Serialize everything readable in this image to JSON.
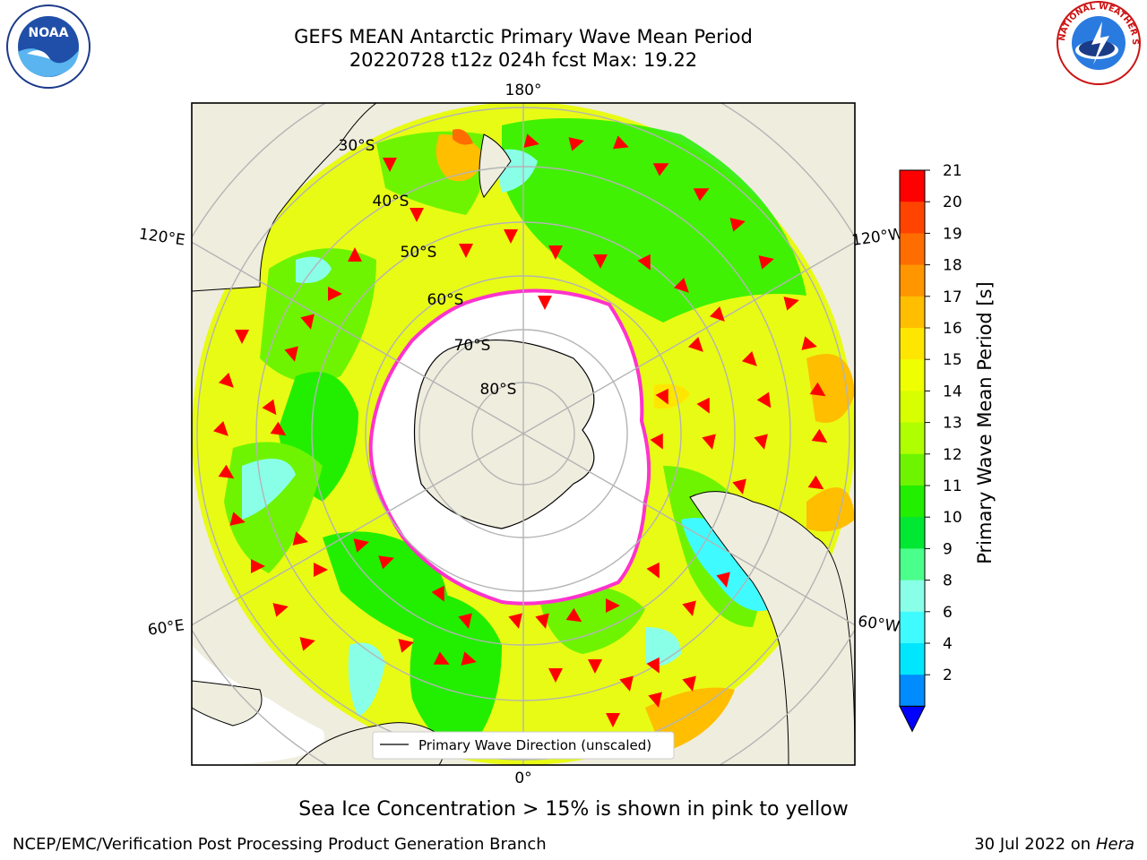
{
  "header": {
    "title_line1": "GEFS MEAN Antarctic Primary Wave Mean Period",
    "title_line2": "20220728 t12z 024h fcst   Max: 19.22"
  },
  "map": {
    "lon_labels": {
      "top": "180°",
      "bottom": "0°",
      "upper_left": "120°E",
      "upper_right": "120°W",
      "lower_left": "60°E",
      "lower_right": "60°W"
    },
    "lat_labels": [
      "30°S",
      "40°S",
      "50°S",
      "60°S",
      "70°S",
      "80°S"
    ],
    "legend_text": "Primary Wave Direction (unscaled)",
    "ice_note": "Sea Ice Concentration > 15% is shown in pink to yellow"
  },
  "colorbar": {
    "label": "Primary Wave Mean Period [s]",
    "ticks": [
      "21",
      "20",
      "19",
      "18",
      "17",
      "16",
      "15",
      "14",
      "13",
      "12",
      "11",
      "10",
      "9",
      "8",
      "6",
      "4",
      "2"
    ],
    "colors": [
      "#ff0000",
      "#ff4400",
      "#ff6d00",
      "#ff9600",
      "#ffbe00",
      "#ffe600",
      "#f0ff00",
      "#d8ff00",
      "#b0ff00",
      "#6ef400",
      "#22ee00",
      "#00e832",
      "#4bff8c",
      "#8affe8",
      "#3ffbff",
      "#00e6ff",
      "#008cff"
    ],
    "extend_color": "#0000ff"
  },
  "footer": {
    "left": "NCEP/EMC/Verification Post Processing Product Generation Branch",
    "right_date": "30 Jul 2022 on ",
    "right_host": "Hera"
  },
  "logos": {
    "left": "NOAA",
    "right": "NATIONAL WEATHER SERVICE"
  },
  "colors": {
    "land": "#efedde",
    "ocean_main": "#e8fb14",
    "ice": "#ffffff",
    "ice_edge": "#ff33cc",
    "arrow": "#ff0000",
    "grid": "#b4b4b4"
  }
}
